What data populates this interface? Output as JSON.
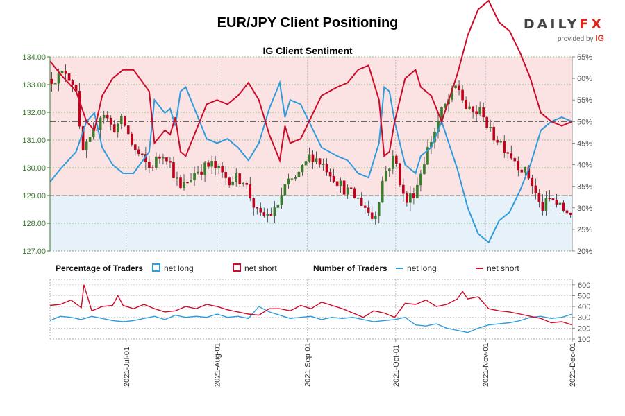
{
  "title": "EUR/JPY Client Positioning",
  "logo": {
    "word": "DAILY",
    "word_fx": "FX",
    "sub": "provided by",
    "brand": "IG"
  },
  "colors": {
    "net_long": "#2e9bdc",
    "net_short": "#cc0a2a",
    "candle_up": "#3a7d2c",
    "candle_down": "#c2001a",
    "upper_shade": "#fbe3e3",
    "lower_shade": "#e6f1fa",
    "left_axis": "#3a7d2c"
  },
  "chart_data": [
    {
      "type": "candlestick+line",
      "title": "IG Client Sentiment",
      "left_axis": {
        "min": 127.0,
        "max": 134.0,
        "ticks": [
          "127.00",
          "128.00",
          "129.00",
          "130.00",
          "131.00",
          "132.00",
          "133.00",
          "134.00"
        ]
      },
      "right_axis": {
        "min": 20,
        "max": 65,
        "ticks": [
          "20%",
          "25%",
          "30%",
          "35%",
          "40%",
          "45%",
          "50%",
          "55%",
          "60%",
          "65%"
        ]
      },
      "reference_lines": {
        "price": 129.0,
        "percent": 50
      },
      "x_months": [
        {
          "label": "2021-Jul-01",
          "x": 0.146
        },
        {
          "label": "2021-Aug-01",
          "x": 0.32
        },
        {
          "label": "2021-Sep-01",
          "x": 0.493
        },
        {
          "label": "2021-Oct-01",
          "x": 0.662
        },
        {
          "label": "2021-Nov-01",
          "x": 0.834
        },
        {
          "label": "2021-Dec-01",
          "x": 1.0
        }
      ],
      "price_keypoints": [
        [
          0.0,
          133.2
        ],
        [
          0.02,
          133.3
        ],
        [
          0.03,
          133.5
        ],
        [
          0.05,
          132.9
        ],
        [
          0.06,
          130.5
        ],
        [
          0.08,
          131.0
        ],
        [
          0.1,
          132.1
        ],
        [
          0.12,
          131.4
        ],
        [
          0.14,
          131.7
        ],
        [
          0.16,
          130.7
        ],
        [
          0.19,
          130.0
        ],
        [
          0.22,
          130.6
        ],
        [
          0.25,
          129.2
        ],
        [
          0.28,
          129.9
        ],
        [
          0.31,
          130.1
        ],
        [
          0.34,
          129.6
        ],
        [
          0.37,
          129.6
        ],
        [
          0.4,
          128.2
        ],
        [
          0.43,
          128.4
        ],
        [
          0.45,
          129.3
        ],
        [
          0.48,
          129.8
        ],
        [
          0.5,
          130.5
        ],
        [
          0.53,
          130.0
        ],
        [
          0.56,
          129.3
        ],
        [
          0.6,
          128.7
        ],
        [
          0.62,
          128.1
        ],
        [
          0.64,
          129.8
        ],
        [
          0.66,
          130.4
        ],
        [
          0.68,
          128.7
        ],
        [
          0.7,
          129.2
        ],
        [
          0.72,
          130.5
        ],
        [
          0.75,
          132.0
        ],
        [
          0.78,
          133.0
        ],
        [
          0.8,
          132.0
        ],
        [
          0.83,
          132.0
        ],
        [
          0.84,
          131.3
        ],
        [
          0.86,
          131.0
        ],
        [
          0.89,
          130.3
        ],
        [
          0.92,
          129.6
        ],
        [
          0.94,
          128.5
        ],
        [
          0.96,
          128.9
        ],
        [
          0.98,
          128.5
        ],
        [
          1.0,
          128.4
        ]
      ],
      "series": [
        {
          "name": "net long",
          "keypoints": [
            [
              0.0,
              36
            ],
            [
              0.02,
              39
            ],
            [
              0.05,
              43
            ],
            [
              0.07,
              50
            ],
            [
              0.085,
              52
            ],
            [
              0.1,
              44
            ],
            [
              0.12,
              40
            ],
            [
              0.14,
              38
            ],
            [
              0.16,
              38
            ],
            [
              0.19,
              43
            ],
            [
              0.2,
              55
            ],
            [
              0.22,
              52
            ],
            [
              0.23,
              53
            ],
            [
              0.24,
              49
            ],
            [
              0.25,
              57
            ],
            [
              0.26,
              58
            ],
            [
              0.27,
              55
            ],
            [
              0.29,
              49
            ],
            [
              0.3,
              46
            ],
            [
              0.32,
              45
            ],
            [
              0.34,
              46
            ],
            [
              0.36,
              44
            ],
            [
              0.38,
              41
            ],
            [
              0.4,
              45
            ],
            [
              0.42,
              53
            ],
            [
              0.43,
              56
            ],
            [
              0.44,
              59
            ],
            [
              0.45,
              51
            ],
            [
              0.46,
              55
            ],
            [
              0.48,
              54
            ],
            [
              0.5,
              49
            ],
            [
              0.52,
              44
            ],
            [
              0.55,
              42
            ],
            [
              0.57,
              41
            ],
            [
              0.59,
              38
            ],
            [
              0.61,
              37
            ],
            [
              0.63,
              45
            ],
            [
              0.64,
              58
            ],
            [
              0.65,
              57
            ],
            [
              0.66,
              50
            ],
            [
              0.68,
              40
            ],
            [
              0.7,
              38
            ],
            [
              0.71,
              42
            ],
            [
              0.73,
              44
            ],
            [
              0.75,
              50
            ],
            [
              0.78,
              39
            ],
            [
              0.8,
              30
            ],
            [
              0.82,
              24
            ],
            [
              0.84,
              22
            ],
            [
              0.86,
              27
            ],
            [
              0.88,
              29
            ],
            [
              0.9,
              34
            ],
            [
              0.92,
              40
            ],
            [
              0.94,
              48
            ],
            [
              0.96,
              50
            ],
            [
              0.98,
              51
            ],
            [
              1.0,
              50
            ]
          ]
        },
        {
          "name": "net short",
          "keypoints": [
            [
              0.0,
              64
            ],
            [
              0.02,
              61
            ],
            [
              0.05,
              57
            ],
            [
              0.07,
              50
            ],
            [
              0.085,
              48
            ],
            [
              0.1,
              56
            ],
            [
              0.12,
              60
            ],
            [
              0.14,
              62
            ],
            [
              0.16,
              62
            ],
            [
              0.19,
              57
            ],
            [
              0.2,
              45
            ],
            [
              0.22,
              48
            ],
            [
              0.23,
              47
            ],
            [
              0.24,
              51
            ],
            [
              0.25,
              43
            ],
            [
              0.26,
              42
            ],
            [
              0.27,
              45
            ],
            [
              0.29,
              51
            ],
            [
              0.3,
              54
            ],
            [
              0.32,
              55
            ],
            [
              0.34,
              54
            ],
            [
              0.36,
              56
            ],
            [
              0.38,
              59
            ],
            [
              0.4,
              55
            ],
            [
              0.42,
              47
            ],
            [
              0.43,
              44
            ],
            [
              0.44,
              41
            ],
            [
              0.45,
              49
            ],
            [
              0.46,
              45
            ],
            [
              0.48,
              46
            ],
            [
              0.5,
              51
            ],
            [
              0.52,
              56
            ],
            [
              0.55,
              58
            ],
            [
              0.57,
              59
            ],
            [
              0.59,
              62
            ],
            [
              0.61,
              63
            ],
            [
              0.63,
              55
            ],
            [
              0.64,
              42
            ],
            [
              0.65,
              43
            ],
            [
              0.66,
              50
            ],
            [
              0.68,
              60
            ],
            [
              0.7,
              62
            ],
            [
              0.71,
              58
            ],
            [
              0.73,
              56
            ],
            [
              0.75,
              50
            ],
            [
              0.78,
              61
            ],
            [
              0.8,
              70
            ],
            [
              0.82,
              76
            ],
            [
              0.84,
              78
            ],
            [
              0.86,
              73
            ],
            [
              0.88,
              71
            ],
            [
              0.9,
              66
            ],
            [
              0.92,
              60
            ],
            [
              0.94,
              52
            ],
            [
              0.96,
              50
            ],
            [
              0.98,
              49
            ],
            [
              1.0,
              50
            ]
          ]
        }
      ]
    },
    {
      "type": "line",
      "legend": {
        "percentage_title": "Percentage of Traders",
        "number_title": "Number of Traders",
        "net_long": "net long",
        "net_short": "net short"
      },
      "right_axis": {
        "min": 100,
        "max": 650,
        "ticks": [
          "100",
          "200",
          "300",
          "400",
          "500",
          "600"
        ]
      },
      "series": [
        {
          "name": "net long",
          "keypoints": [
            [
              0.0,
              270
            ],
            [
              0.02,
              310
            ],
            [
              0.04,
              300
            ],
            [
              0.06,
              280
            ],
            [
              0.08,
              310
            ],
            [
              0.1,
              290
            ],
            [
              0.12,
              270
            ],
            [
              0.14,
              260
            ],
            [
              0.16,
              270
            ],
            [
              0.18,
              290
            ],
            [
              0.2,
              310
            ],
            [
              0.22,
              280
            ],
            [
              0.24,
              320
            ],
            [
              0.26,
              300
            ],
            [
              0.28,
              310
            ],
            [
              0.3,
              300
            ],
            [
              0.32,
              330
            ],
            [
              0.34,
              300
            ],
            [
              0.36,
              310
            ],
            [
              0.38,
              290
            ],
            [
              0.4,
              400
            ],
            [
              0.42,
              350
            ],
            [
              0.44,
              320
            ],
            [
              0.46,
              290
            ],
            [
              0.48,
              300
            ],
            [
              0.5,
              310
            ],
            [
              0.52,
              280
            ],
            [
              0.54,
              300
            ],
            [
              0.56,
              290
            ],
            [
              0.58,
              300
            ],
            [
              0.6,
              280
            ],
            [
              0.62,
              260
            ],
            [
              0.64,
              270
            ],
            [
              0.66,
              280
            ],
            [
              0.68,
              300
            ],
            [
              0.7,
              230
            ],
            [
              0.72,
              220
            ],
            [
              0.74,
              240
            ],
            [
              0.76,
              200
            ],
            [
              0.78,
              180
            ],
            [
              0.8,
              160
            ],
            [
              0.82,
              200
            ],
            [
              0.84,
              230
            ],
            [
              0.86,
              240
            ],
            [
              0.88,
              250
            ],
            [
              0.9,
              270
            ],
            [
              0.92,
              300
            ],
            [
              0.94,
              310
            ],
            [
              0.96,
              290
            ],
            [
              0.98,
              300
            ],
            [
              1.0,
              330
            ]
          ]
        },
        {
          "name": "net short",
          "keypoints": [
            [
              0.0,
              410
            ],
            [
              0.02,
              420
            ],
            [
              0.04,
              460
            ],
            [
              0.06,
              390
            ],
            [
              0.065,
              600
            ],
            [
              0.08,
              360
            ],
            [
              0.1,
              400
            ],
            [
              0.12,
              410
            ],
            [
              0.13,
              500
            ],
            [
              0.14,
              410
            ],
            [
              0.16,
              380
            ],
            [
              0.18,
              420
            ],
            [
              0.2,
              380
            ],
            [
              0.22,
              350
            ],
            [
              0.24,
              360
            ],
            [
              0.26,
              400
            ],
            [
              0.28,
              380
            ],
            [
              0.3,
              420
            ],
            [
              0.32,
              400
            ],
            [
              0.34,
              370
            ],
            [
              0.36,
              350
            ],
            [
              0.38,
              330
            ],
            [
              0.4,
              320
            ],
            [
              0.42,
              380
            ],
            [
              0.44,
              380
            ],
            [
              0.46,
              360
            ],
            [
              0.48,
              410
            ],
            [
              0.5,
              380
            ],
            [
              0.52,
              440
            ],
            [
              0.54,
              410
            ],
            [
              0.56,
              380
            ],
            [
              0.58,
              340
            ],
            [
              0.6,
              300
            ],
            [
              0.62,
              360
            ],
            [
              0.64,
              340
            ],
            [
              0.66,
              300
            ],
            [
              0.68,
              430
            ],
            [
              0.7,
              420
            ],
            [
              0.72,
              460
            ],
            [
              0.74,
              400
            ],
            [
              0.76,
              420
            ],
            [
              0.78,
              470
            ],
            [
              0.79,
              540
            ],
            [
              0.8,
              470
            ],
            [
              0.82,
              490
            ],
            [
              0.84,
              380
            ],
            [
              0.86,
              360
            ],
            [
              0.88,
              350
            ],
            [
              0.9,
              330
            ],
            [
              0.92,
              310
            ],
            [
              0.94,
              290
            ],
            [
              0.96,
              250
            ],
            [
              0.98,
              260
            ],
            [
              1.0,
              230
            ]
          ]
        }
      ]
    }
  ]
}
